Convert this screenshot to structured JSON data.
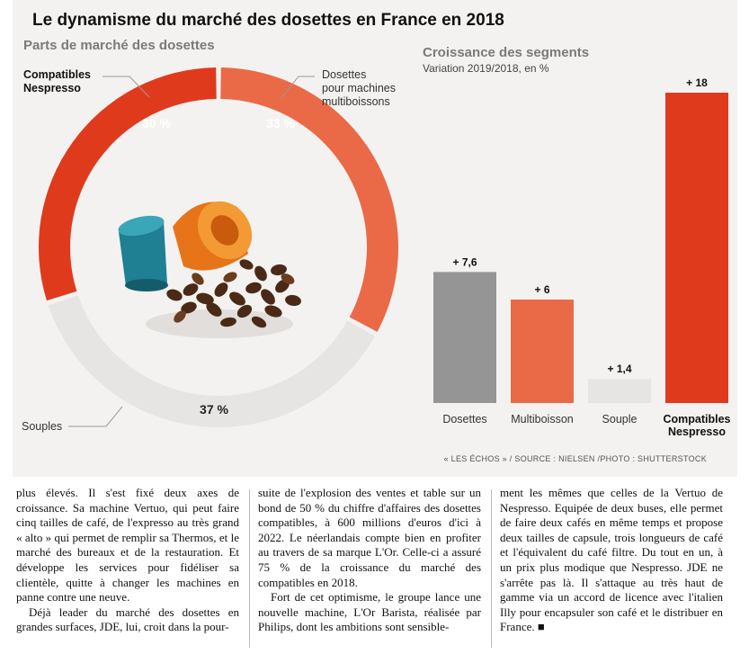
{
  "header": {
    "title": "Le dynamisme du marché des dosettes en France en 2018"
  },
  "left_panel": {
    "title": "Parts de marché des dosettes",
    "labels": {
      "compatibles": "Compatibles\nNespresso",
      "dosettes": "Dosettes\npour machines\nmultiboissons",
      "souples": "Souples"
    }
  },
  "right_panel": {
    "title": "Croissance des segments",
    "subtitle": "Variation 2019/2018, en %"
  },
  "source": "« LES ÉCHOS » / SOURCE : NIELSEN /PHOTO : SHUTTERSTOCK",
  "colors": {
    "gray": "#959595",
    "orange": "#ea6a48",
    "light": "#e6e5e3",
    "red": "#e03a1d"
  },
  "chart_data": [
    {
      "type": "pie",
      "title": "Parts de marché des dosettes",
      "slices": [
        {
          "label": "Dosettes pour machines multiboissons",
          "value": 33,
          "display": "33 %",
          "color": "#ea6a48"
        },
        {
          "label": "Souples",
          "value": 37,
          "display": "37 %",
          "color": "#e6e5e3"
        },
        {
          "label": "Compatibles Nespresso",
          "value": 30,
          "display": "30 %",
          "color": "#e03a1d"
        }
      ]
    },
    {
      "type": "bar",
      "title": "Croissance des segments",
      "subtitle": "Variation 2019/2018, en %",
      "categories": [
        "Dosettes",
        "Multiboisson",
        "Souple",
        "Compatibles\nNespresso"
      ],
      "values": [
        7.6,
        6,
        1.4,
        18
      ],
      "value_labels": [
        "+ 7,6",
        "+ 6",
        "+ 1,4",
        "+ 18"
      ],
      "colors": [
        "#959595",
        "#ea6a48",
        "#e6e5e3",
        "#e03a1d"
      ],
      "ylim": [
        0,
        18
      ]
    }
  ],
  "article": {
    "col1": [
      "plus élevés. Il s'est fixé deux axes de croissance. Sa machine Vertuo, qui peut faire cinq tailles de café, de l'expresso au très grand « alto » qui permet de remplir sa Thermos, et le marché des bureaux et de la restauration. Et développe les services pour fidéliser sa clientèle, quitte à changer les machines en panne contre une neuve.",
      "Déjà leader du marché des dosettes en grandes surfaces, JDE, lui, croit dans la pour-"
    ],
    "col2": [
      "suite de l'explosion des ventes et table sur un bond de 50 % du chiffre d'affaires des dosettes compatibles, à 600 millions d'euros d'ici à 2022. Le néerlandais compte bien en profiter au travers de sa marque L'Or. Celle-ci a assuré 75 % de la croissance du marché des compatibles en 2018.",
      "Fort de cet optimisme, le groupe lance une nouvelle machine, L'Or Barista, réalisée par Philips, dont les ambitions sont sensible-"
    ],
    "col3": [
      "ment les mêmes que celles de la Vertuo de Nespresso. Equipée de deux buses, elle permet de faire deux cafés en même temps et propose deux tailles de capsule, trois longueurs de café et l'équivalent du café filtre. Du tout en un, à un prix plus modique que Nespresso. JDE ne s'arrête pas là. Il s'attaque au très haut de gamme via un accord de licence avec l'italien Illy pour encapsuler son café et le distribuer en France. ■"
    ]
  }
}
